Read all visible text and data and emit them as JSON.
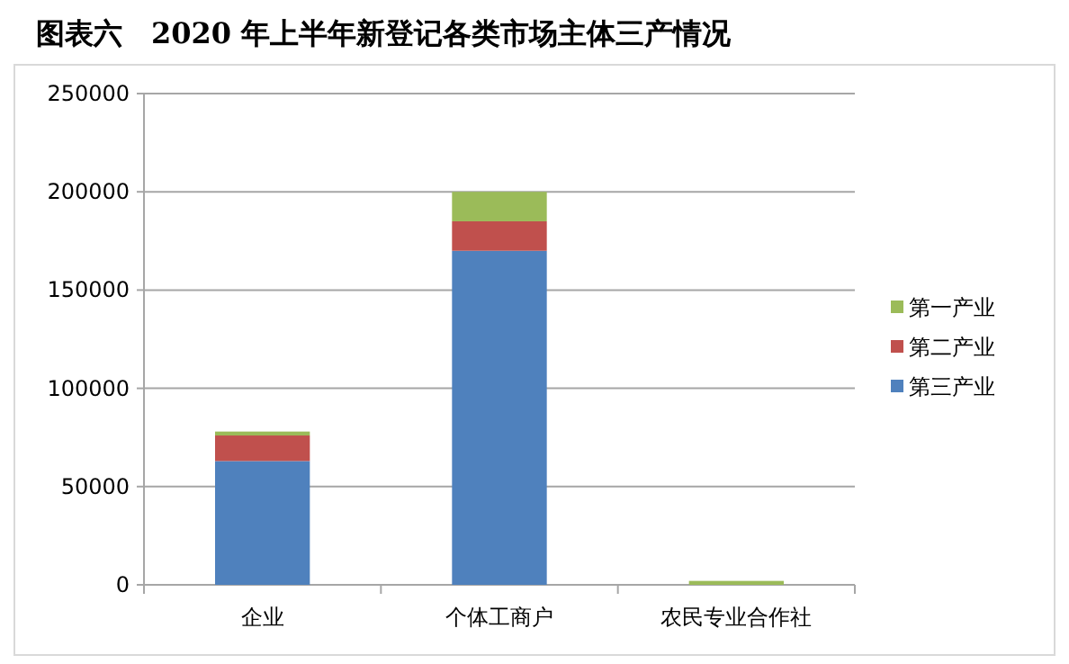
{
  "chart_data": {
    "type": "bar",
    "title": "图表六　2020 年上半年新登记各类市场主体三产情况",
    "categories": [
      "企业",
      "个体工商户",
      "农民专业合作社"
    ],
    "stacked": true,
    "series": [
      {
        "name": "第三产业",
        "color": "#4f81bd",
        "values": [
          63000,
          170000,
          0
        ]
      },
      {
        "name": "第二产业",
        "color": "#c0504d",
        "values": [
          13000,
          15000,
          0
        ]
      },
      {
        "name": "第一产业",
        "color": "#9bbb59",
        "values": [
          2000,
          15000,
          2000
        ]
      }
    ],
    "ylim": [
      0,
      250000
    ],
    "yticks": [
      0,
      50000,
      100000,
      150000,
      200000,
      250000
    ],
    "grid": "y",
    "legend": "right"
  }
}
